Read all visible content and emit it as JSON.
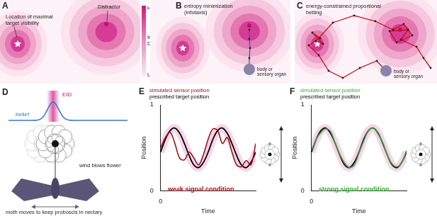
{
  "panels": [
    {
      "label": "A",
      "target": "Location of maximal target visibility",
      "distractor": "Distractor"
    },
    {
      "colorbar_high": "High",
      "colorbar_title": "Information Density",
      "colorbar_low": "Low"
    },
    {
      "label": "B",
      "title": "entropy minimization (infotaxis)",
      "body": "body or sensory organ"
    },
    {
      "label": "C",
      "title": "energy-constrained proportional betting",
      "body": "body or sensory organ"
    },
    {
      "label": "D",
      "eid": "EID",
      "belief": "belief",
      "wind": "wind blows flower",
      "moth": "moth moves to keep proboscis in nectary"
    }
  ],
  "chart_data": [
    {
      "panel": "E",
      "type": "line",
      "x_label": "Time",
      "y_label": "Position",
      "xlim": [
        0,
        1
      ],
      "xticks": [
        0
      ],
      "ylim": [
        0,
        1
      ],
      "yticks": [
        0,
        1
      ],
      "grid": false,
      "annotation": "weak signal condition",
      "x": [
        0,
        0.05,
        0.1,
        0.15,
        0.2,
        0.25,
        0.3,
        0.35,
        0.4,
        0.45,
        0.5,
        0.55,
        0.6,
        0.65,
        0.7,
        0.75,
        0.8,
        0.85,
        0.9,
        0.95,
        1
      ],
      "series": [
        {
          "name": "simulated sensor position",
          "color": "#a3111a",
          "values": [
            0.5,
            0.62,
            0.68,
            0.55,
            0.38,
            0.36,
            0.45,
            0.38,
            0.3,
            0.42,
            0.6,
            0.72,
            0.7,
            0.55,
            0.62,
            0.45,
            0.3,
            0.28,
            0.35,
            0.3,
            0.55
          ]
        },
        {
          "name": "prescribed target position",
          "color": "#000000",
          "values": [
            0.45,
            0.6,
            0.7,
            0.73,
            0.67,
            0.55,
            0.41,
            0.3,
            0.27,
            0.33,
            0.45,
            0.6,
            0.7,
            0.73,
            0.67,
            0.55,
            0.41,
            0.3,
            0.27,
            0.33,
            0.45
          ]
        }
      ]
    },
    {
      "panel": "F",
      "type": "line",
      "x_label": "Time",
      "y_label": "Position",
      "xlim": [
        0,
        1
      ],
      "xticks": [
        0
      ],
      "ylim": [
        0,
        1
      ],
      "yticks": [
        0,
        1
      ],
      "grid": false,
      "annotation": "strong signal condition",
      "x": [
        0,
        0.05,
        0.1,
        0.15,
        0.2,
        0.25,
        0.3,
        0.35,
        0.4,
        0.45,
        0.5,
        0.55,
        0.6,
        0.65,
        0.7,
        0.75,
        0.8,
        0.85,
        0.9,
        0.95,
        1
      ],
      "series": [
        {
          "name": "simulated sensor position",
          "color": "#3caa3c",
          "values": [
            0.47,
            0.6,
            0.68,
            0.72,
            0.69,
            0.55,
            0.42,
            0.32,
            0.27,
            0.3,
            0.44,
            0.58,
            0.7,
            0.73,
            0.66,
            0.56,
            0.41,
            0.31,
            0.28,
            0.33,
            0.47
          ]
        },
        {
          "name": "prescribed target position",
          "color": "#000000",
          "values": [
            0.45,
            0.6,
            0.7,
            0.73,
            0.67,
            0.55,
            0.41,
            0.3,
            0.27,
            0.33,
            0.45,
            0.6,
            0.7,
            0.73,
            0.67,
            0.55,
            0.41,
            0.3,
            0.27,
            0.33,
            0.45
          ]
        }
      ]
    }
  ]
}
